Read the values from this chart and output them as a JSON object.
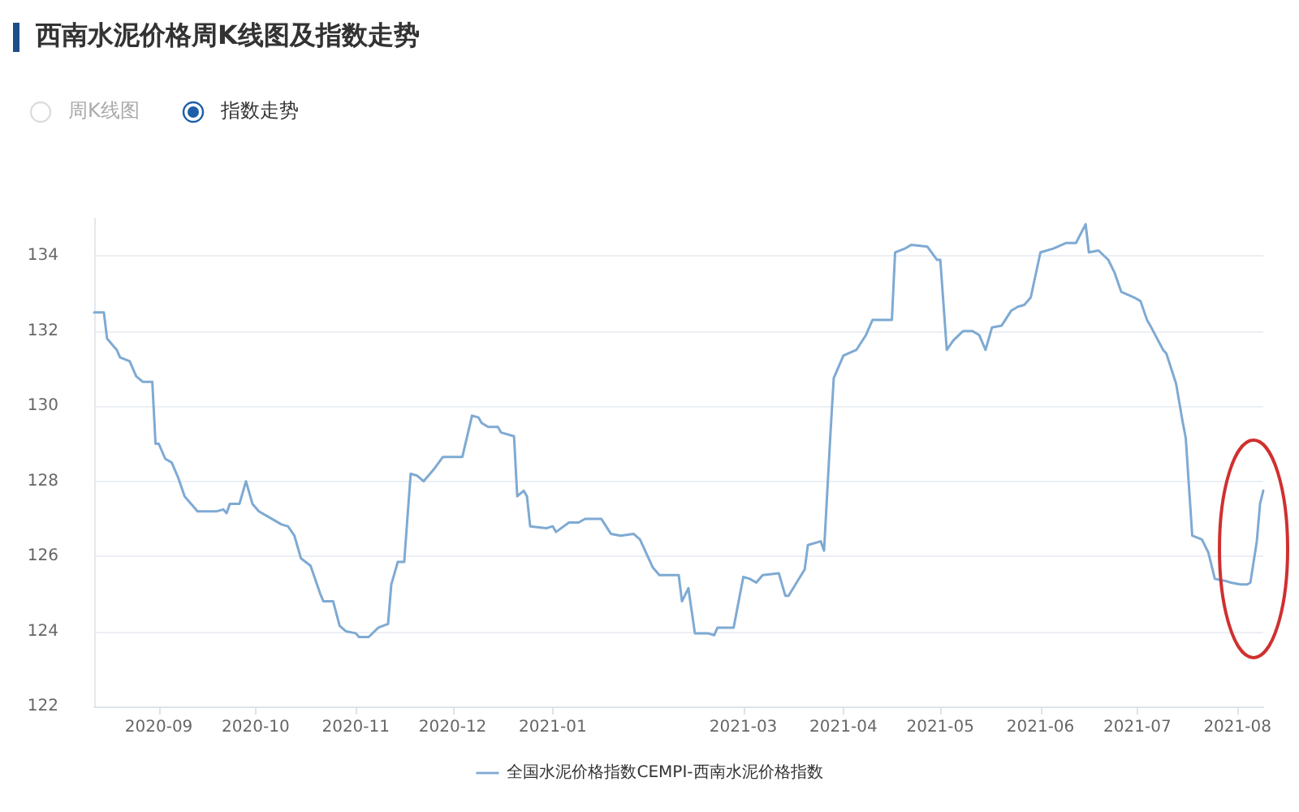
{
  "chart_data": {
    "type": "line",
    "title": "西南水泥价格周K线图及指数走势",
    "annotations": [
      "周K线图",
      "指数走势"
    ],
    "x": [
      "2020-08-12",
      "2020-08-15",
      "2020-08-16",
      "2020-08-19",
      "2020-08-20",
      "2020-08-23",
      "2020-08-25",
      "2020-08-27",
      "2020-08-30",
      "2020-08-31",
      "2020-09-01",
      "2020-09-03",
      "2020-09-05",
      "2020-09-07",
      "2020-09-09",
      "2020-09-11",
      "2020-09-13",
      "2020-09-19",
      "2020-09-21",
      "2020-09-22",
      "2020-09-23",
      "2020-09-26",
      "2020-09-28",
      "2020-09-30",
      "2020-10-02",
      "2020-10-05",
      "2020-10-09",
      "2020-10-11",
      "2020-10-13",
      "2020-10-15",
      "2020-10-18",
      "2020-10-21",
      "2020-10-22",
      "2020-10-25",
      "2020-10-27",
      "2020-10-29",
      "2020-11-01",
      "2020-11-02",
      "2020-11-05",
      "2020-11-08",
      "2020-11-11",
      "2020-11-12",
      "2020-11-14",
      "2020-11-16",
      "2020-11-18",
      "2020-11-20",
      "2020-11-22",
      "2020-11-25",
      "2020-11-28",
      "2020-12-04",
      "2020-12-07",
      "2020-12-09",
      "2020-12-10",
      "2020-12-12",
      "2020-12-15",
      "2020-12-16",
      "2020-12-20",
      "2020-12-21",
      "2020-12-23",
      "2020-12-24",
      "2020-12-25",
      "2020-12-30",
      "2021-01-01",
      "2021-01-02",
      "2021-01-06",
      "2021-01-09",
      "2021-01-11",
      "2021-01-16",
      "2021-01-19",
      "2021-01-22",
      "2021-01-26",
      "2021-01-28",
      "2021-02-01",
      "2021-02-03",
      "2021-02-09",
      "2021-02-10",
      "2021-02-12",
      "2021-02-14",
      "2021-02-18",
      "2021-02-20",
      "2021-02-21",
      "2021-02-26",
      "2021-03-01",
      "2021-03-03",
      "2021-03-05",
      "2021-03-07",
      "2021-03-12",
      "2021-03-14",
      "2021-03-15",
      "2021-03-20",
      "2021-03-21",
      "2021-03-25",
      "2021-03-26",
      "2021-03-28",
      "2021-03-29",
      "2021-04-01",
      "2021-04-05",
      "2021-04-08",
      "2021-04-10",
      "2021-04-13",
      "2021-04-16",
      "2021-04-17",
      "2021-04-20",
      "2021-04-22",
      "2021-04-27",
      "2021-04-30",
      "2021-05-01",
      "2021-05-03",
      "2021-05-05",
      "2021-05-08",
      "2021-05-11",
      "2021-05-13",
      "2021-05-15",
      "2021-05-17",
      "2021-05-20",
      "2021-05-23",
      "2021-05-25",
      "2021-05-27",
      "2021-05-29",
      "2021-06-01",
      "2021-06-05",
      "2021-06-09",
      "2021-06-12",
      "2021-06-15",
      "2021-06-16",
      "2021-06-19",
      "2021-06-22",
      "2021-06-24",
      "2021-06-26",
      "2021-06-30",
      "2021-07-02",
      "2021-07-04",
      "2021-07-05",
      "2021-07-09",
      "2021-07-10",
      "2021-07-13",
      "2021-07-15",
      "2021-07-16",
      "2021-07-18",
      "2021-07-21",
      "2021-07-23",
      "2021-07-25",
      "2021-07-28",
      "2021-07-30",
      "2021-08-02",
      "2021-08-04",
      "2021-08-05",
      "2021-08-07",
      "2021-08-08",
      "2021-08-09"
    ],
    "series": [
      {
        "name": "全国水泥价格指数CEMPI-西南水泥价格指数",
        "color": "#7eaad3",
        "values": [
          132.5,
          132.5,
          131.8,
          131.5,
          131.3,
          131.2,
          130.8,
          130.65,
          130.65,
          129.0,
          129.0,
          128.6,
          128.5,
          128.1,
          127.6,
          127.4,
          127.2,
          127.2,
          127.25,
          127.15,
          127.4,
          127.4,
          128.0,
          127.4,
          127.2,
          127.05,
          126.85,
          126.8,
          126.55,
          125.95,
          125.75,
          125.0,
          124.8,
          124.8,
          124.15,
          124.0,
          123.95,
          123.85,
          123.85,
          124.1,
          124.2,
          125.25,
          125.85,
          125.85,
          128.2,
          128.15,
          128.0,
          128.3,
          128.65,
          128.65,
          129.75,
          129.7,
          129.55,
          129.45,
          129.45,
          129.3,
          129.2,
          127.6,
          127.75,
          127.6,
          126.8,
          126.75,
          126.8,
          126.65,
          126.9,
          126.9,
          127.0,
          127.0,
          126.6,
          126.55,
          126.6,
          126.45,
          125.7,
          125.5,
          125.5,
          124.8,
          125.15,
          123.95,
          123.95,
          123.9,
          124.1,
          124.1,
          125.45,
          125.4,
          125.3,
          125.5,
          125.55,
          124.95,
          124.95,
          125.65,
          126.3,
          126.4,
          126.15,
          129.3,
          130.75,
          131.35,
          131.5,
          131.9,
          132.3,
          132.3,
          132.3,
          134.1,
          134.2,
          134.3,
          134.25,
          133.9,
          133.9,
          131.5,
          131.75,
          132.0,
          132.0,
          131.9,
          131.5,
          132.1,
          132.15,
          132.55,
          132.65,
          132.7,
          132.9,
          134.1,
          134.2,
          134.35,
          134.35,
          134.85,
          134.1,
          134.15,
          133.9,
          133.55,
          133.05,
          132.9,
          132.8,
          132.3,
          132.15,
          131.5,
          131.4,
          130.6,
          129.6,
          129.15,
          126.55,
          126.45,
          126.1,
          125.4,
          125.35,
          125.3,
          125.25,
          125.25,
          125.3,
          126.4,
          127.4,
          127.75
        ]
      }
    ],
    "xlim": [
      "2020-08-12",
      "2021-08-09"
    ],
    "xticks": [
      "2020-09",
      "2020-10",
      "2020-11",
      "2020-12",
      "2021-01",
      "2021-03",
      "2021-04",
      "2021-05",
      "2021-06",
      "2021-07",
      "2021-08"
    ],
    "ylim": [
      122,
      135
    ],
    "yticks": [
      122,
      124,
      126,
      128,
      130,
      132,
      134
    ],
    "grid": "y",
    "legend": "bottom",
    "marker": "none",
    "line_style": "solid"
  }
}
